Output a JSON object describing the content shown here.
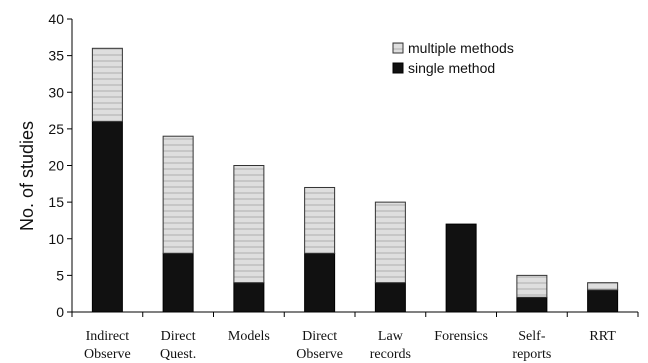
{
  "chart_data": {
    "type": "bar",
    "stacked": true,
    "categories": [
      [
        "Indirect",
        "Observe"
      ],
      [
        "Direct",
        "Quest."
      ],
      [
        "Models"
      ],
      [
        "Direct",
        "Observe"
      ],
      [
        "Law",
        "records"
      ],
      [
        "Forensics"
      ],
      [
        "Self-",
        "reports"
      ],
      [
        "RRT"
      ]
    ],
    "series": [
      {
        "name": "single method",
        "color": "#111111",
        "values": [
          26,
          8,
          4,
          8,
          4,
          12,
          2,
          3
        ]
      },
      {
        "name": "multiple methods",
        "color": "#d8d8d8",
        "values": [
          10,
          16,
          16,
          9,
          11,
          0,
          3,
          1
        ]
      }
    ],
    "ylabel": "No. of studies",
    "ylim": [
      0,
      40
    ],
    "yticks": [
      0,
      5,
      10,
      15,
      20,
      25,
      30,
      35,
      40
    ],
    "grid": false,
    "legend": {
      "position": "top-right",
      "entries": [
        "multiple methods",
        "single method"
      ]
    }
  }
}
